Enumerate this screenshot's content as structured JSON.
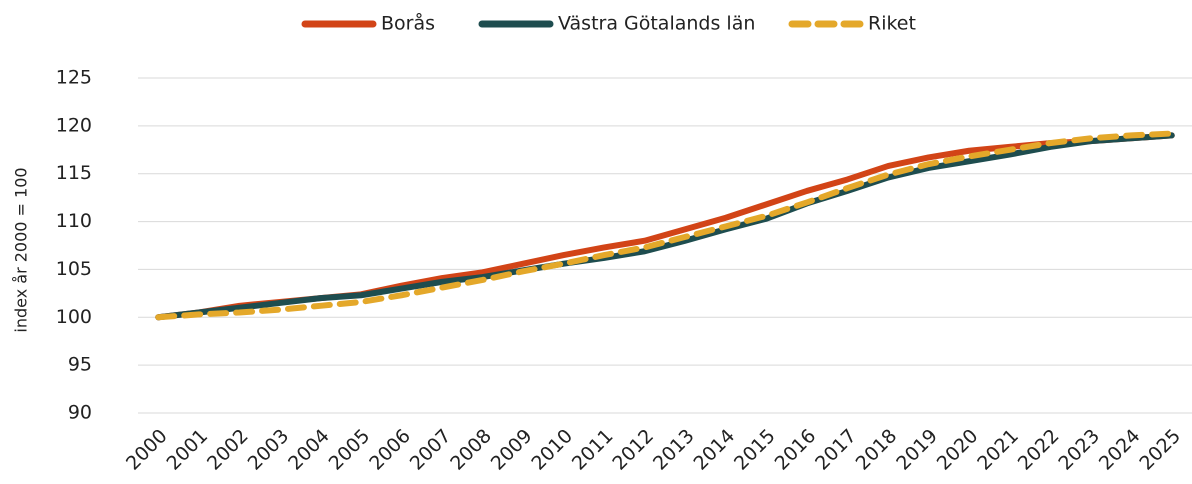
{
  "chart_data": {
    "type": "line",
    "y_label": "index år 2000 = 100",
    "categories": [
      "2000",
      "2001",
      "2002",
      "2003",
      "2004",
      "2005",
      "2006",
      "2007",
      "2008",
      "2009",
      "2010",
      "2011",
      "2012",
      "2013",
      "2014",
      "2015",
      "2016",
      "2017",
      "2018",
      "2019",
      "2020",
      "2021",
      "2022",
      "2023",
      "2024",
      "2025"
    ],
    "series": [
      {
        "name": "Borås",
        "color": "#d24417",
        "dashed": false,
        "values": [
          100,
          100.5,
          101.2,
          101.6,
          102.0,
          102.4,
          103.3,
          104.1,
          104.7,
          105.6,
          106.5,
          107.3,
          108.0,
          109.2,
          110.4,
          111.8,
          113.2,
          114.4,
          115.8,
          116.7,
          117.4,
          117.8,
          118.2,
          118.4,
          118.7,
          119.0
        ]
      },
      {
        "name": "Västra Götalands län",
        "color": "#1e4d4f",
        "dashed": false,
        "values": [
          100,
          100.5,
          101.0,
          101.5,
          102.0,
          102.3,
          103.0,
          103.7,
          104.2,
          104.9,
          105.6,
          106.2,
          106.9,
          108.0,
          109.2,
          110.3,
          111.9,
          113.2,
          114.6,
          115.6,
          116.3,
          117.0,
          117.8,
          118.4,
          118.7,
          119.0
        ]
      },
      {
        "name": "Riket",
        "color": "#e4a82a",
        "dashed": true,
        "values": [
          100,
          100.3,
          100.5,
          100.8,
          101.2,
          101.6,
          102.3,
          103.1,
          103.9,
          104.8,
          105.6,
          106.5,
          107.3,
          108.4,
          109.5,
          110.6,
          112.0,
          113.5,
          114.9,
          116.0,
          116.8,
          117.5,
          118.2,
          118.7,
          119.0,
          119.2
        ]
      }
    ],
    "ylim": [
      90,
      125
    ],
    "yticks": [
      90,
      95,
      100,
      105,
      110,
      115,
      120,
      125
    ],
    "grid": true,
    "legend": "top"
  }
}
